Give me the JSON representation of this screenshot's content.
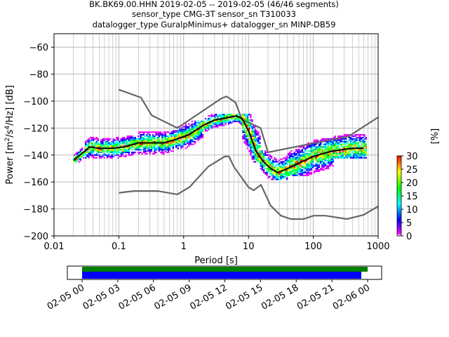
{
  "title": {
    "line1": "BK.BK69.00.HHN   2019-02-05 -- 2019-02-05  (46/46 segments)",
    "line2": "sensor_type CMG-3T sensor_sn T310033",
    "line3": "datalogger_type GuralpMinimus+ datalogger_sn MINP-DB59"
  },
  "chart_data": {
    "type": "heatmap",
    "xlabel": "Period [s]",
    "ylabel": "Power [m²/s⁴/Hz] [dB]",
    "xscale": "log",
    "xlim": [
      0.01,
      1000
    ],
    "ylim": [
      -200,
      -50
    ],
    "xticks": [
      0.01,
      0.1,
      1,
      10,
      100,
      1000
    ],
    "xtick_labels": [
      "0.01",
      "0.1",
      "1",
      "10",
      "100",
      "1000"
    ],
    "yticks": [
      -200,
      -180,
      -160,
      -140,
      -120,
      -100,
      -80,
      -60
    ],
    "grid": true,
    "colorbar": {
      "label": "[%]",
      "range": [
        0,
        30
      ],
      "ticks": [
        0,
        5,
        10,
        15,
        20,
        25,
        30
      ],
      "colors": [
        "#ffffff",
        "#ff00ff",
        "#0000ff",
        "#00ffff",
        "#00ff00",
        "#ffff00",
        "#ff0000"
      ]
    },
    "noise_model_high": {
      "period": [
        0.1,
        0.22,
        0.32,
        0.8,
        3.8,
        4.6,
        6.3,
        7.9,
        15.4,
        20,
        354.8,
        1000
      ],
      "db": [
        -91.5,
        -97.4,
        -110.5,
        -120,
        -98,
        -96.5,
        -101,
        -113.5,
        -120,
        -138,
        -126,
        -112
      ]
    },
    "noise_model_low": {
      "period": [
        0.1,
        0.17,
        0.4,
        0.8,
        1.24,
        2.4,
        4.3,
        5,
        6,
        10,
        12,
        15.6,
        21.9,
        31.6,
        45,
        70,
        101,
        154,
        328,
        600,
        1000
      ],
      "db": [
        -168,
        -166.7,
        -166.7,
        -169.2,
        -163.7,
        -148.6,
        -141.1,
        -141.1,
        -149,
        -163.8,
        -166.2,
        -162.1,
        -177.5,
        -185,
        -187.5,
        -187.5,
        -185,
        -185,
        -187.5,
        -184.4,
        -178
      ]
    },
    "mode_curve": {
      "period": [
        0.02,
        0.025,
        0.03,
        0.035,
        0.05,
        0.08,
        0.12,
        0.2,
        0.3,
        0.5,
        0.8,
        1.2,
        2,
        3,
        5,
        6.5,
        8,
        10,
        13,
        17,
        22,
        28,
        40,
        60,
        100,
        200,
        400,
        600
      ],
      "db": [
        -144,
        -140,
        -137,
        -134,
        -135,
        -135,
        -134,
        -131,
        -131,
        -131,
        -128,
        -125,
        -118,
        -114,
        -112,
        -111,
        -113,
        -122,
        -137,
        -145,
        -150,
        -153,
        -150,
        -146,
        -141,
        -137,
        -135,
        -135
      ]
    },
    "density_bands": [
      {
        "period": [
          0.02,
          0.03
        ],
        "db": [
          -145,
          -135
        ]
      },
      {
        "period": [
          0.03,
          0.2
        ],
        "db": [
          -142,
          -125
        ]
      },
      {
        "period": [
          0.2,
          0.8
        ],
        "db": [
          -140,
          -122
        ]
      },
      {
        "period": [
          0.8,
          2
        ],
        "db": [
          -135,
          -115
        ]
      },
      {
        "period": [
          2,
          8
        ],
        "db": [
          -122,
          -110
        ]
      },
      {
        "period": [
          8,
          15
        ],
        "db": [
          -145,
          -110
        ]
      },
      {
        "period": [
          15,
          40
        ],
        "db": [
          -158,
          -137
        ]
      },
      {
        "period": [
          40,
          200
        ],
        "db": [
          -155,
          -128
        ]
      },
      {
        "period": [
          200,
          650
        ],
        "db": [
          -142,
          -118
        ]
      }
    ]
  },
  "coverage": {
    "tick_labels": [
      "02-05 00",
      "02-05 03",
      "02-05 06",
      "02-05 09",
      "02-05 12",
      "02-05 15",
      "02-05 18",
      "02-05 21",
      "02-06 00"
    ],
    "green_bar_color": "#008000",
    "blue_bar_color": "#0000ff"
  }
}
